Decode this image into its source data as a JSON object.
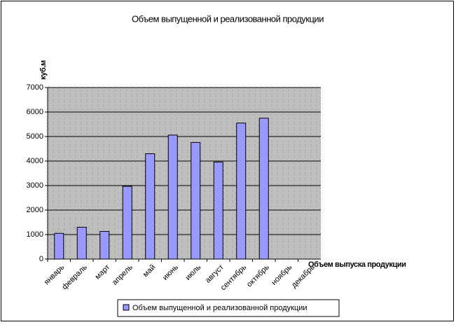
{
  "chart_data": {
    "type": "bar",
    "title": "Объем выпущенной и реализованной продукции",
    "y_axis_label": "куб.м",
    "x_axis_label": "Объем выпуска продукции",
    "categories": [
      "январь",
      "февраль",
      "март",
      "апрель",
      "май",
      "июнь",
      "июль",
      "август",
      "сентябрь",
      "октябрь",
      "ноябрь",
      "декабрь"
    ],
    "series": [
      {
        "name": "Объем выпущенной и реализованной продукции",
        "color": "#9999ff",
        "values": [
          1050,
          1300,
          1130,
          2970,
          4300,
          5060,
          4760,
          3960,
          5550,
          5750,
          null,
          null
        ]
      }
    ],
    "ylim": [
      0,
      7000
    ],
    "yticks": [
      0,
      1000,
      2000,
      3000,
      4000,
      5000,
      6000,
      7000
    ],
    "grid": true,
    "legend": "bottom"
  }
}
